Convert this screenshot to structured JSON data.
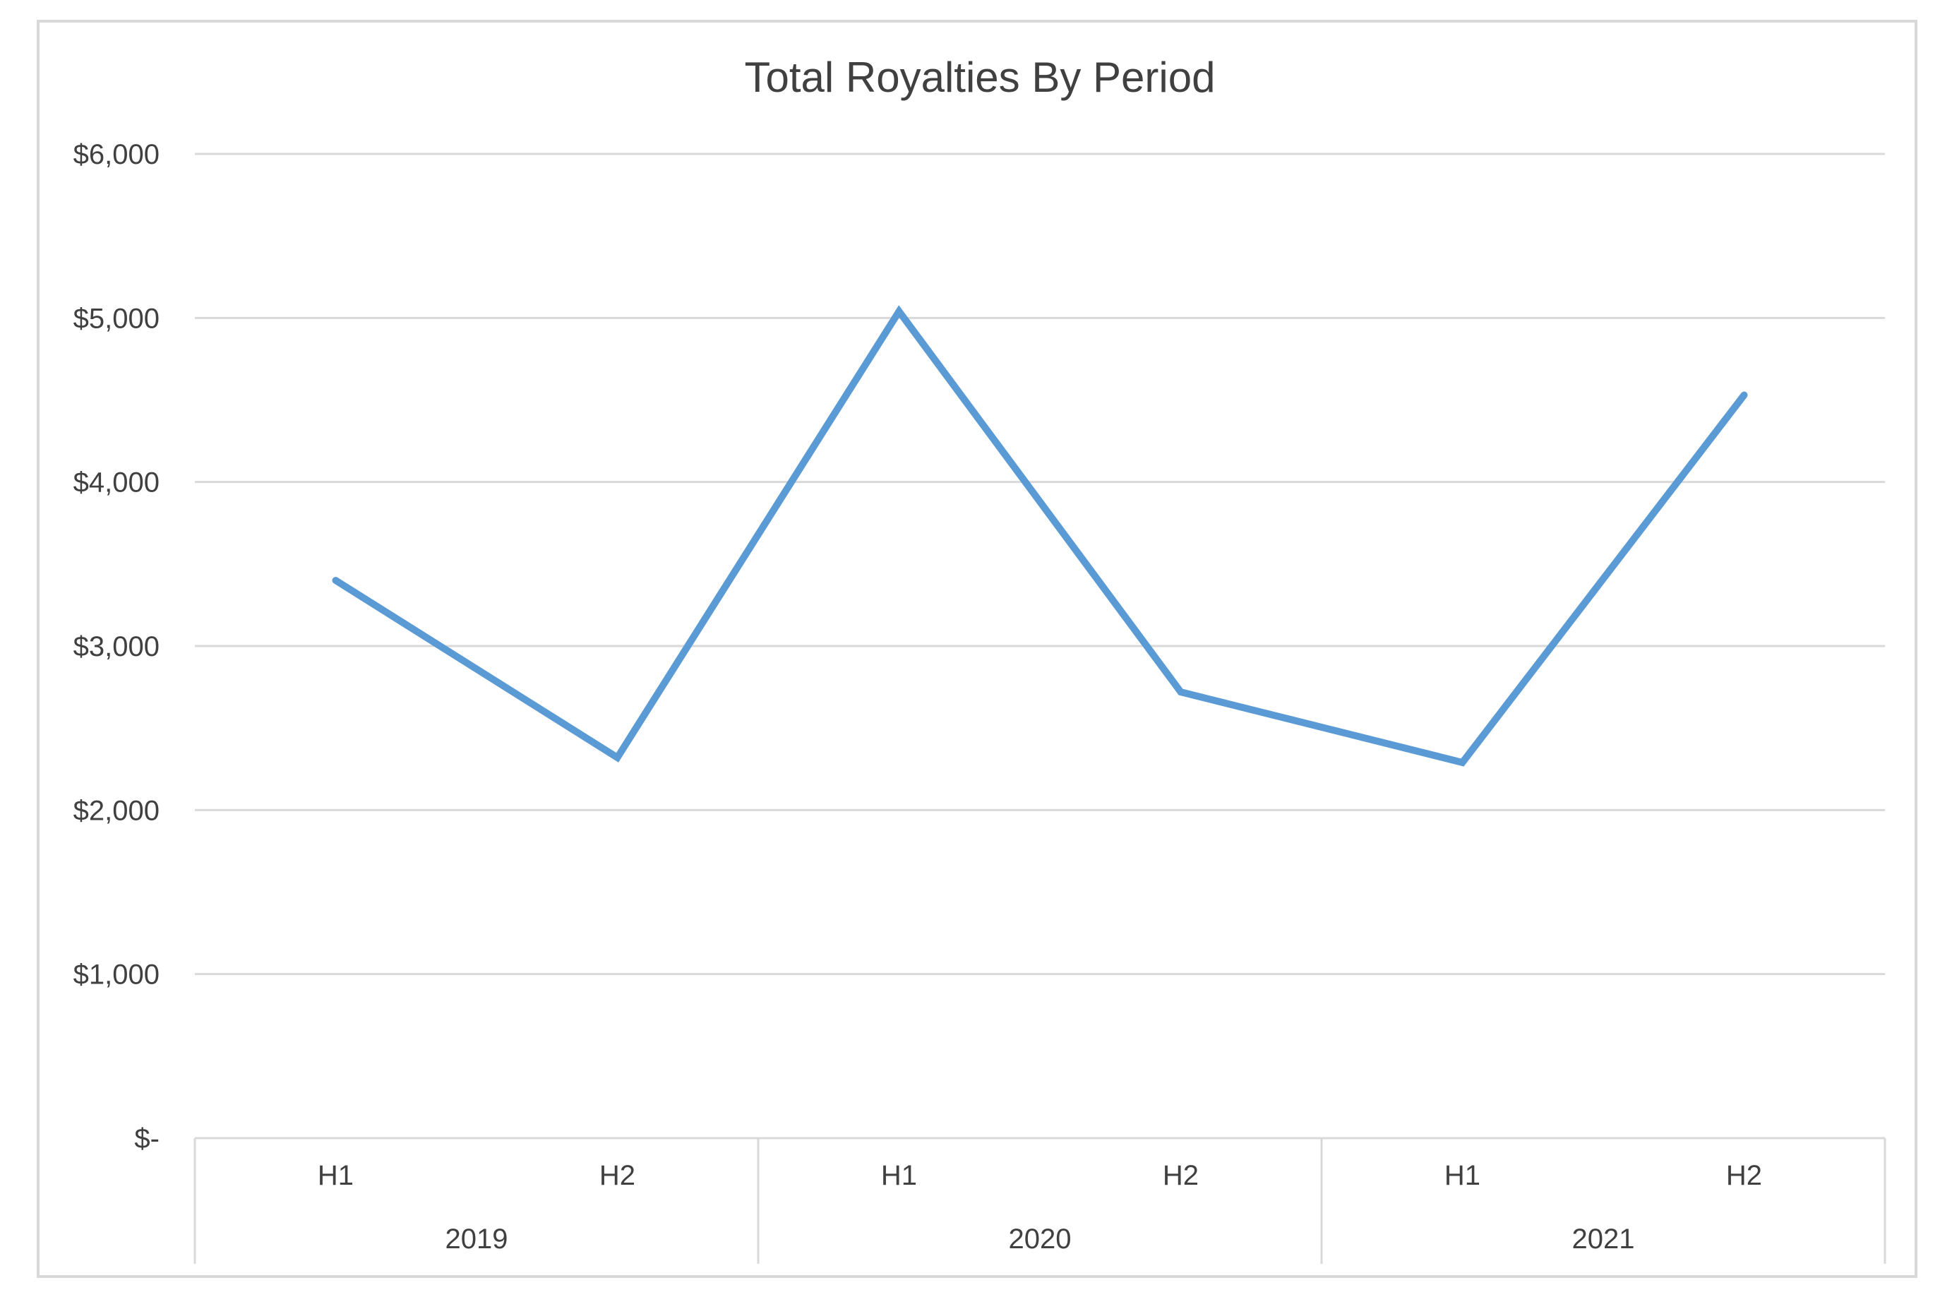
{
  "chart_data": {
    "type": "line",
    "title": "Total Royalties By Period",
    "xlabel": "",
    "ylabel": "",
    "categories": [
      "H1",
      "H2",
      "H1",
      "H2",
      "H1",
      "H2"
    ],
    "groups": [
      {
        "label": "2019",
        "categories": [
          "H1",
          "H2"
        ]
      },
      {
        "label": "2020",
        "categories": [
          "H1",
          "H2"
        ]
      },
      {
        "label": "2021",
        "categories": [
          "H1",
          "H2"
        ]
      }
    ],
    "series": [
      {
        "values": [
          3400,
          2320,
          5040,
          2720,
          2290,
          4530
        ],
        "color": "#5b9bd5"
      }
    ],
    "ylim": [
      0,
      6000
    ],
    "yticks": [
      {
        "value": 0,
        "label": "$-"
      },
      {
        "value": 1000,
        "label": "$1,000"
      },
      {
        "value": 2000,
        "label": "$2,000"
      },
      {
        "value": 3000,
        "label": "$3,000"
      },
      {
        "value": 4000,
        "label": "$4,000"
      },
      {
        "value": 5000,
        "label": "$5,000"
      },
      {
        "value": 6000,
        "label": "$6,000"
      }
    ],
    "grid": true,
    "legend": "none"
  }
}
